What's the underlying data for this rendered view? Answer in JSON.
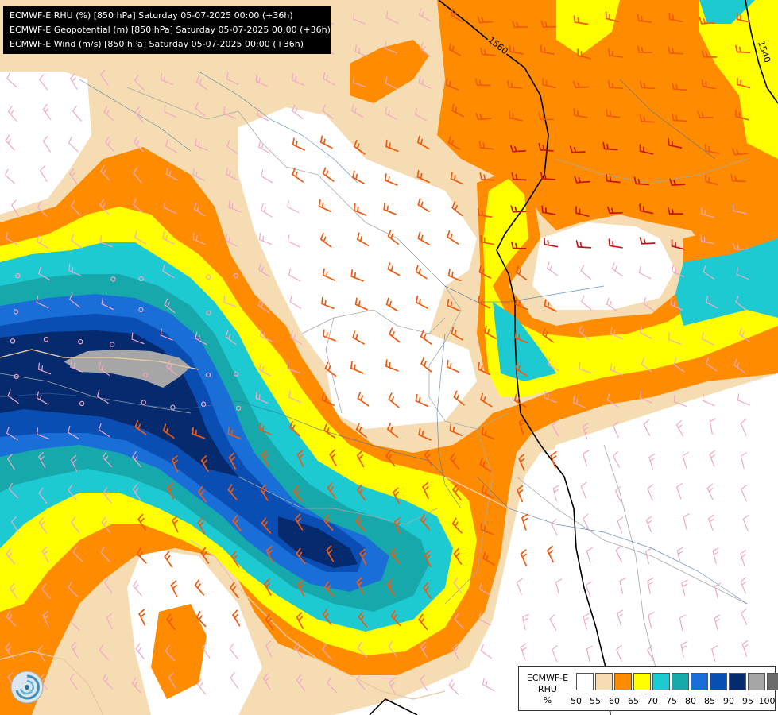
{
  "titles": [
    "ECMWF-E RHU (%) [850 hPa] Saturday 05-07-2025 00:00 (+36h)",
    "ECMWF-E Geopotential (m) [850 hPa] Saturday 05-07-2025 00:00 (+36h)",
    "ECMWF-E Wind (m/s) [850 hPa] Saturday 05-07-2025 00:00 (+36h)"
  ],
  "contours": {
    "left": "1560",
    "right": "1540"
  },
  "legend": {
    "model": "ECMWF-E",
    "variable": "RHU",
    "unit": "%",
    "ticks": [
      "50",
      "55",
      "60",
      "65",
      "70",
      "75",
      "80",
      "85",
      "90",
      "95",
      "100"
    ],
    "colors": [
      "#ffffff",
      "#f5dcb2",
      "#ff8c00",
      "#ffff00",
      "#1ecad2",
      "#17a8ac",
      "#1a6ed8",
      "#0a4eb4",
      "#062a6e",
      "#a6a6a6",
      "#6b6b6b"
    ]
  },
  "colors": {
    "barb_light": "#f0a8c8",
    "barb_orange": "#ee5a10",
    "barb_red": "#c81414",
    "river": "#3a6ea5",
    "border": "#a8a8a8",
    "coast": "#e8c9a6",
    "contour": "#000000"
  },
  "logo": "ecmwf-logo"
}
